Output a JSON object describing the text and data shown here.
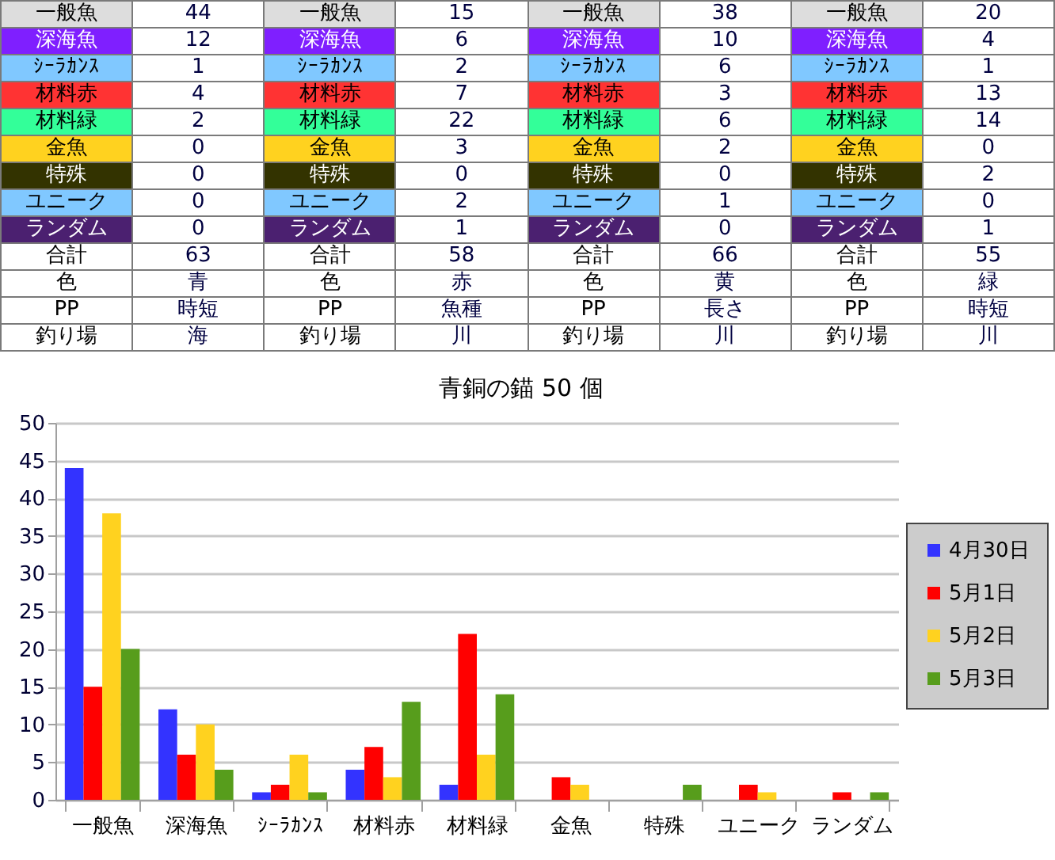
{
  "chart_data": {
    "type": "bar",
    "title": "青銅の錨 50 個",
    "categories": [
      "一般魚",
      "深海魚",
      "ｼｰﾗｶﾝｽ",
      "材料赤",
      "材料緑",
      "金魚",
      "特殊",
      "ユニーク",
      "ランダム"
    ],
    "series": [
      {
        "name": "4月30日",
        "color": "#3333ff",
        "values": [
          44,
          12,
          1,
          4,
          2,
          0,
          0,
          0,
          0
        ]
      },
      {
        "name": "5月1日",
        "color": "#ff0000",
        "values": [
          15,
          6,
          2,
          7,
          22,
          3,
          0,
          2,
          1
        ]
      },
      {
        "name": "5月2日",
        "color": "#ffd21f",
        "values": [
          38,
          10,
          6,
          3,
          6,
          2,
          0,
          1,
          0
        ]
      },
      {
        "name": "5月3日",
        "color": "#579d1c",
        "values": [
          20,
          4,
          1,
          13,
          14,
          0,
          2,
          0,
          1
        ]
      }
    ],
    "ylim": [
      0,
      50
    ],
    "yticks": [
      0,
      5,
      10,
      15,
      20,
      25,
      30,
      35,
      40,
      45,
      50
    ],
    "grid": "y",
    "legend": "right",
    "annotations": [
      "一般魚",
      "44",
      "一般魚",
      "15",
      "一般魚",
      "38",
      "一般魚",
      "20",
      "深海魚",
      "12",
      "深海魚",
      "6",
      "深海魚",
      "10",
      "深海魚",
      "4",
      "ｼｰﾗｶﾝｽ",
      "1",
      "ｼｰﾗｶﾝｽ",
      "2",
      "ｼｰﾗｶﾝｽ",
      "6",
      "ｼｰﾗｶﾝｽ",
      "1",
      "材料赤",
      "4",
      "材料赤",
      "7",
      "材料赤",
      "3",
      "材料赤",
      "13",
      "材料緑",
      "2",
      "材料緑",
      "22",
      "材料緑",
      "6",
      "材料緑",
      "14",
      "金魚",
      "0",
      "金魚",
      "3",
      "金魚",
      "2",
      "金魚",
      "0",
      "特殊",
      "0",
      "特殊",
      "0",
      "特殊",
      "0",
      "特殊",
      "2",
      "ユニーク",
      "0",
      "ユニーク",
      "2",
      "ユニーク",
      "1",
      "ユニーク",
      "0",
      "ランダム",
      "0",
      "ランダム",
      "1",
      "ランダム",
      "0",
      "ランダム",
      "1",
      "合計",
      "63",
      "合計",
      "58",
      "合計",
      "66",
      "合計",
      "55",
      "色",
      "青",
      "色",
      "赤",
      "色",
      "黄",
      "色",
      "緑",
      "PP",
      "時短",
      "PP",
      "魚種",
      "PP",
      "長さ",
      "PP",
      "時短",
      "釣り場",
      "海",
      "釣り場",
      "川",
      "釣り場",
      "川",
      "釣り場",
      "川"
    ]
  }
}
